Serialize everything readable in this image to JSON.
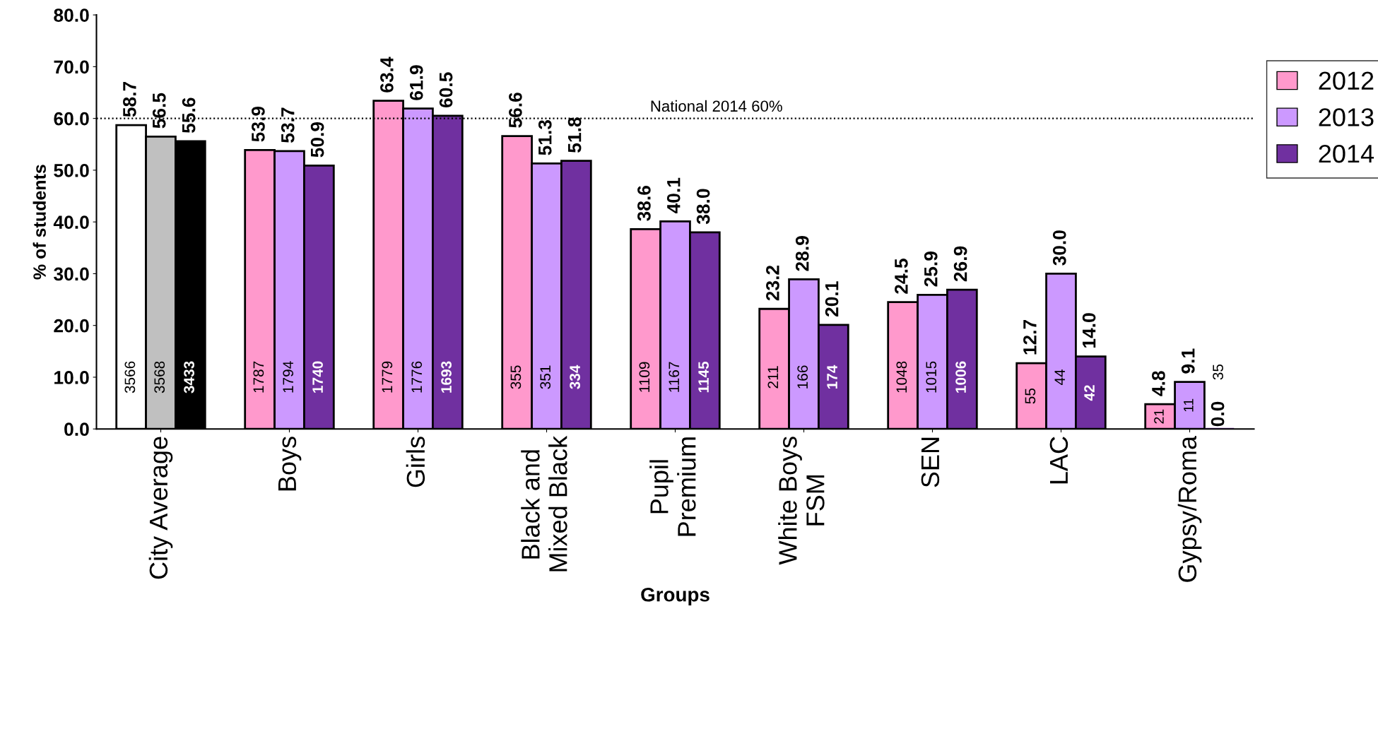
{
  "chart_data": {
    "type": "bar",
    "ylabel": "% of students",
    "xlabel": "Groups",
    "categories": [
      "City Average",
      "Boys",
      "Girls",
      "Black and\nMixed Black",
      "Pupil\nPremium",
      "White Boys\nFSM",
      "SEN",
      "LAC",
      "Gypsy/Roma"
    ],
    "series": [
      {
        "name": "2012",
        "color": "#ff99cc",
        "colors": [
          "#ffffff",
          "#ff99cc",
          "#ff99cc",
          "#ff99cc",
          "#ff99cc",
          "#ff99cc",
          "#ff99cc",
          "#ff99cc",
          "#ff99cc"
        ],
        "values": [
          58.7,
          53.9,
          63.4,
          56.6,
          38.6,
          23.2,
          24.5,
          12.7,
          4.8
        ],
        "value_labels": [
          "58.7",
          "53.9",
          "63.4",
          "56.6",
          "38.6",
          "23.2",
          "24.5",
          "12.7",
          "4.8"
        ]
      },
      {
        "name": "2013",
        "color": "#cc99ff",
        "colors": [
          "#c0c0c0",
          "#cc99ff",
          "#cc99ff",
          "#cc99ff",
          "#cc99ff",
          "#cc99ff",
          "#cc99ff",
          "#cc99ff",
          "#cc99ff"
        ],
        "values": [
          56.5,
          53.7,
          61.9,
          51.3,
          40.1,
          28.9,
          25.9,
          30.0,
          9.1
        ],
        "value_labels": [
          "56.5",
          "53.7",
          "61.9",
          "51.3",
          "40.1",
          "28.9",
          "25.9",
          "30.0",
          "9.1"
        ]
      },
      {
        "name": "2014",
        "color": "#7030a0",
        "colors": [
          "#000000",
          "#7030a0",
          "#7030a0",
          "#7030a0",
          "#7030a0",
          "#7030a0",
          "#7030a0",
          "#7030a0",
          "#7030a0"
        ],
        "values": [
          55.6,
          50.9,
          60.5,
          51.8,
          38.0,
          20.1,
          26.9,
          14.0,
          0.0
        ],
        "value_labels": [
          "55.6",
          "50.9",
          "60.5",
          "51.8",
          "38.0",
          "20.1",
          "26.9",
          "14.0",
          "0.0"
        ]
      }
    ],
    "annotations": [
      "3566",
      "1787",
      "1779",
      "355",
      "1109",
      "211",
      "1048",
      "55",
      "21",
      "3568",
      "1794",
      "1776",
      "351",
      "1167",
      "166",
      "1015",
      "44",
      "11",
      "3433",
      "1740",
      "1693",
      "334",
      "1145",
      "174",
      "1006",
      "42",
      "35"
    ],
    "ylim": [
      0,
      80
    ],
    "yticks": [
      {
        "value": 0,
        "label": "0.0"
      },
      {
        "value": 10,
        "label": "10.0"
      },
      {
        "value": 20,
        "label": "20.0"
      },
      {
        "value": 30,
        "label": "30.0"
      },
      {
        "value": 40,
        "label": "40.0"
      },
      {
        "value": 50,
        "label": "50.0"
      },
      {
        "value": 60,
        "label": "60.0"
      },
      {
        "value": 70,
        "label": "70.0"
      },
      {
        "value": 80,
        "label": "80.0"
      }
    ],
    "ref_lines": [
      {
        "axis": "y",
        "value": 60,
        "label": "National 2014 60%",
        "color": "#000000",
        "line_style": "dotted"
      }
    ],
    "grid": false,
    "legend": "top right"
  }
}
